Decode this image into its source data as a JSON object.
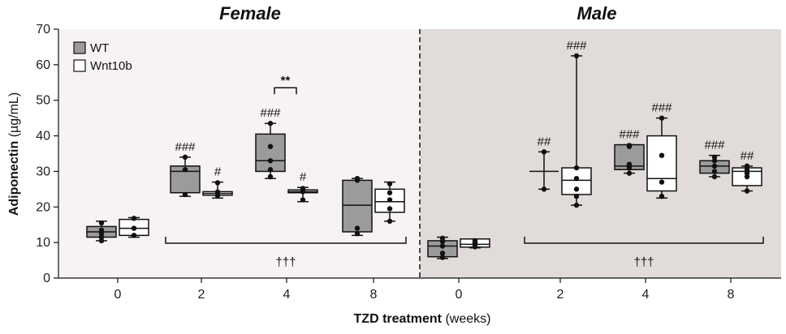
{
  "chart_data": {
    "type": "box",
    "y_label": "Adiponectin",
    "y_unit": "(µg/mL)",
    "x_label": "TZD treatment",
    "x_unit": "(weeks)",
    "ylim": [
      0,
      70
    ],
    "yticks": [
      0,
      10,
      20,
      30,
      40,
      50,
      60,
      70
    ],
    "colors": {
      "female_bg": "#f7f3f4",
      "male_bg": "#e1dcd9",
      "wt": "#9b9b9b",
      "wnt": "#ffffff",
      "stroke": "#111111"
    },
    "legend": [
      {
        "key": "wt",
        "label": "WT"
      },
      {
        "key": "wnt",
        "label": "Wnt10b"
      }
    ],
    "panels": [
      {
        "title": "Female",
        "groups": [
          {
            "week": "0",
            "wt": {
              "min": 10.5,
              "q1": 11.5,
              "median": 13,
              "q3": 14.5,
              "max": 16,
              "points": [
                10.5,
                11.5,
                12.5,
                13.5,
                15.5
              ]
            },
            "wnt": {
              "min": 11.5,
              "q1": 12,
              "median": 14,
              "q3": 16.5,
              "max": 17,
              "points": [
                12,
                14,
                16.8
              ]
            }
          },
          {
            "week": "2",
            "wt": {
              "min": 23,
              "q1": 24,
              "median": 30,
              "q3": 31.5,
              "max": 34,
              "points": [
                23.5,
                30.5,
                34
              ]
            },
            "wt_sig": "###",
            "wnt": {
              "min": 22.5,
              "q1": 23.3,
              "median": 23.8,
              "q3": 24.3,
              "max": 27,
              "points": [
                23.2,
                24.2,
                26.8
              ]
            },
            "wnt_sig": "#"
          },
          {
            "week": "4",
            "wt": {
              "min": 28,
              "q1": 30,
              "median": 33,
              "q3": 40.5,
              "max": 43.5,
              "points": [
                28.5,
                30.5,
                33,
                37,
                43.5
              ]
            },
            "wt_sig": "###",
            "wnt": {
              "min": 21.5,
              "q1": 24,
              "median": 24.3,
              "q3": 24.8,
              "max": 25.5,
              "points": [
                22,
                24.3,
                25.2
              ]
            },
            "wnt_sig": "#"
          },
          {
            "week": "8",
            "wt": {
              "min": 12,
              "q1": 13,
              "median": 20.5,
              "q3": 27.5,
              "max": 28,
              "points": [
                12.5,
                14,
                27.5,
                28
              ]
            },
            "wnt": {
              "min": 16,
              "q1": 18.5,
              "median": 21.5,
              "q3": 25,
              "max": 27,
              "points": [
                16,
                19.5,
                22,
                24,
                26.5
              ]
            }
          }
        ],
        "comparison": {
          "label": "**",
          "from_week": "4"
        },
        "bracket_label": "†††"
      },
      {
        "title": "Male",
        "groups": [
          {
            "week": "0",
            "wt": {
              "min": 5.5,
              "q1": 6,
              "median": 9,
              "q3": 10.5,
              "max": 11.5,
              "points": [
                5.8,
                7,
                9,
                10.3,
                11.2
              ]
            },
            "wnt": {
              "min": 8.5,
              "q1": 8.7,
              "median": 9.5,
              "q3": 11,
              "max": 11,
              "points": [
                8.8,
                9.3,
                9.7,
                10,
                10.5
              ]
            }
          },
          {
            "week": "2",
            "wt": {
              "min": 25,
              "q1": 30,
              "median": 30,
              "q3": 30,
              "max": 35.5,
              "points": [
                25,
                35.5
              ]
            },
            "wt_sig": "##",
            "wt_box": false,
            "wnt": {
              "min": 20.5,
              "q1": 23.5,
              "median": 27.5,
              "q3": 31,
              "max": 62.5,
              "points": [
                20.5,
                23,
                25,
                28,
                31,
                62.5
              ]
            },
            "wnt_sig": "###"
          },
          {
            "week": "4",
            "wt": {
              "min": 29.5,
              "q1": 30.5,
              "median": 31.5,
              "q3": 37.5,
              "max": 37.5,
              "points": [
                29.5,
                31,
                32,
                37,
                37.3
              ]
            },
            "wt_sig": "###",
            "wnt": {
              "min": 22.5,
              "q1": 24.5,
              "median": 28,
              "q3": 40,
              "max": 45,
              "points": [
                23,
                27,
                34.5,
                45
              ]
            },
            "wnt_sig": "###"
          },
          {
            "week": "8",
            "wt": {
              "min": 28.5,
              "q1": 29.5,
              "median": 31.5,
              "q3": 33,
              "max": 34.5,
              "points": [
                28.5,
                30,
                31.5,
                33,
                34
              ]
            },
            "wt_sig": "###",
            "wnt": {
              "min": 24.5,
              "q1": 26,
              "median": 30,
              "q3": 31,
              "max": 31.5,
              "points": [
                24.5,
                28.5,
                29.5,
                30.5,
                31.5
              ]
            },
            "wnt_sig": "##"
          }
        ],
        "bracket_label": "†††"
      }
    ]
  }
}
